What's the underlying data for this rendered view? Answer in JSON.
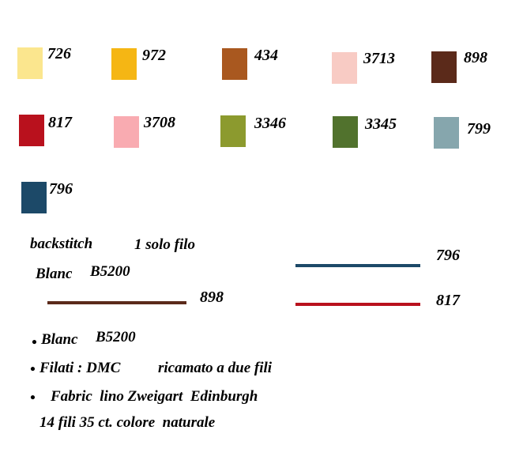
{
  "swatches": [
    {
      "label": "726",
      "color": "#fbe68e"
    },
    {
      "label": "972",
      "color": "#f5b614"
    },
    {
      "label": "434",
      "color": "#a9581f"
    },
    {
      "label": "3713",
      "color": "#f8cbc4"
    },
    {
      "label": "898",
      "color": "#5b2a1a"
    },
    {
      "label": "817",
      "color": "#b9111d"
    },
    {
      "label": "3708",
      "color": "#f9abb1"
    },
    {
      "label": "3346",
      "color": "#8c9a2e"
    },
    {
      "label": "3345",
      "color": "#51722d"
    },
    {
      "label": "799",
      "color": "#86a6ad"
    },
    {
      "label": "796",
      "color": "#1c4968"
    }
  ],
  "backstitch": {
    "title": "backstitch",
    "threads": "1 solo filo",
    "brand": "Blanc",
    "brand_code": "B5200",
    "lines": [
      {
        "label": "898",
        "color": "#5b2a1a"
      },
      {
        "label": "796",
        "color": "#1c4968"
      },
      {
        "label": "817",
        "color": "#b9111d"
      }
    ]
  },
  "notes": [
    "Blanc",
    "B5200",
    "Filati : DMC",
    "ricamato a due fili",
    "Fabric  lino Zweigart  Edinburgh",
    "14 fili 35 ct. colore  naturale"
  ]
}
